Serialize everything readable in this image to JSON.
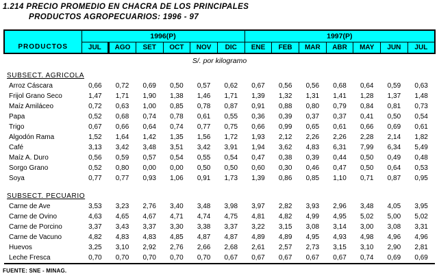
{
  "title": {
    "line1": "1.214 PRECIO PROMEDIO EN CHACRA DE LOS PRINCIPALES",
    "line2": "PRODUCTOS AGROPECUARIOS: 1996 - 97"
  },
  "unit_label": "S/. por kilogramo",
  "footer": {
    "source": "FUENTE: SNE - MINAG."
  },
  "colors": {
    "header_bg": "#00ffff",
    "border": "#000000",
    "text": "#000000",
    "page_bg": "#ffffff"
  },
  "table": {
    "products_header": "PRODUCTOS",
    "year_groups": [
      {
        "label": "1996(P)",
        "months": [
          "JUL",
          "AGO",
          "SET",
          "OCT",
          "NOV",
          "DIC"
        ]
      },
      {
        "label": "1997(P)",
        "months": [
          "ENE",
          "FEB",
          "MAR",
          "ABR",
          "MAY",
          "JUN",
          "JUL"
        ]
      }
    ],
    "sections": [
      {
        "label": "SUBSECT. AGRICOLA",
        "rows": [
          {
            "product": "Arroz Cáscara",
            "values": [
              "0,66",
              "0,72",
              "0,69",
              "0,50",
              "0,57",
              "0,62",
              "0,67",
              "0,56",
              "0,56",
              "0,68",
              "0,64",
              "0,59",
              "0,63"
            ]
          },
          {
            "product": "Frijol Grano Seco",
            "values": [
              "1,47",
              "1,71",
              "1,90",
              "1,38",
              "1,46",
              "1,71",
              "1,39",
              "1,32",
              "1,31",
              "1,41",
              "1,28",
              "1,37",
              "1,48"
            ]
          },
          {
            "product": "Maíz Amiláceo",
            "values": [
              "0,72",
              "0,63",
              "1,00",
              "0,85",
              "0,78",
              "0,87",
              "0,91",
              "0,88",
              "0,80",
              "0,79",
              "0,84",
              "0,81",
              "0,73"
            ]
          },
          {
            "product": "Papa",
            "values": [
              "0,52",
              "0,68",
              "0,74",
              "0,78",
              "0,61",
              "0,55",
              "0,36",
              "0,39",
              "0,37",
              "0,37",
              "0,41",
              "0,50",
              "0,54"
            ]
          },
          {
            "product": "Trigo",
            "values": [
              "0,67",
              "0,66",
              "0,64",
              "0,74",
              "0,77",
              "0,75",
              "0,66",
              "0,99",
              "0,65",
              "0,61",
              "0,66",
              "0,69",
              "0,61"
            ]
          },
          {
            "product": "Algodón Rama",
            "values": [
              "1,52",
              "1,64",
              "1,42",
              "1,35",
              "1,56",
              "1,72",
              "1,93",
              "2,12",
              "2,26",
              "2,26",
              "2,28",
              "2,14",
              "1,82"
            ]
          },
          {
            "product": "Café",
            "values": [
              "3,13",
              "3,42",
              "3,48",
              "3,51",
              "3,42",
              "3,91",
              "1,94",
              "3,62",
              "4,83",
              "6,31",
              "7,99",
              "6,34",
              "5,49"
            ]
          },
          {
            "product": "Maíz A. Duro",
            "values": [
              "0,56",
              "0,59",
              "0,57",
              "0,54",
              "0,55",
              "0,54",
              "0,47",
              "0,38",
              "0,39",
              "0,44",
              "0,50",
              "0,49",
              "0,48"
            ]
          },
          {
            "product": "Sorgo Grano",
            "values": [
              "0,52",
              "0,80",
              "0,00",
              "0,00",
              "0,50",
              "0,50",
              "0,60",
              "0,30",
              "0,46",
              "0,47",
              "0,50",
              "0,64",
              "0,53"
            ]
          },
          {
            "product": "Soya",
            "values": [
              "0,77",
              "0,77",
              "0,93",
              "1,06",
              "0,91",
              "1,73",
              "1,39",
              "0,86",
              "0,85",
              "1,10",
              "0,71",
              "0,87",
              "0,95"
            ]
          }
        ]
      },
      {
        "label": "SUBSECT. PECUARIO",
        "rows": [
          {
            "product": "Carne de Ave",
            "values": [
              "3,53",
              "3,23",
              "2,76",
              "3,40",
              "3,48",
              "3,98",
              "3,97",
              "2,82",
              "3,93",
              "2,96",
              "3,48",
              "4,05",
              "3,95"
            ]
          },
          {
            "product": "Carne de Ovino",
            "values": [
              "4,63",
              "4,65",
              "4,67",
              "4,71",
              "4,74",
              "4,75",
              "4,81",
              "4,82",
              "4,99",
              "4,95",
              "5,02",
              "5,00",
              "5,02"
            ]
          },
          {
            "product": "Carne de Porcino",
            "values": [
              "3,37",
              "3,43",
              "3,37",
              "3,30",
              "3,38",
              "3,37",
              "3,22",
              "3,15",
              "3,08",
              "3,14",
              "3,00",
              "3,08",
              "3,31"
            ]
          },
          {
            "product": "Carne de Vacuno",
            "values": [
              "4,82",
              "4,83",
              "4,83",
              "4,85",
              "4,87",
              "4,87",
              "4,89",
              "4,89",
              "4,95",
              "4,93",
              "4,98",
              "4,96",
              "4,96"
            ]
          },
          {
            "product": "Huevos",
            "values": [
              "3,25",
              "3,10",
              "2,92",
              "2,76",
              "2,66",
              "2,68",
              "2,61",
              "2,57",
              "2,73",
              "3,15",
              "3,10",
              "2,90",
              "2,81"
            ]
          },
          {
            "product": "Leche Fresca",
            "values": [
              "0,70",
              "0,70",
              "0,70",
              "0,70",
              "0,70",
              "0,67",
              "0,67",
              "0,67",
              "0,67",
              "0,67",
              "0,74",
              "0,69",
              "0,69"
            ]
          }
        ]
      }
    ]
  }
}
